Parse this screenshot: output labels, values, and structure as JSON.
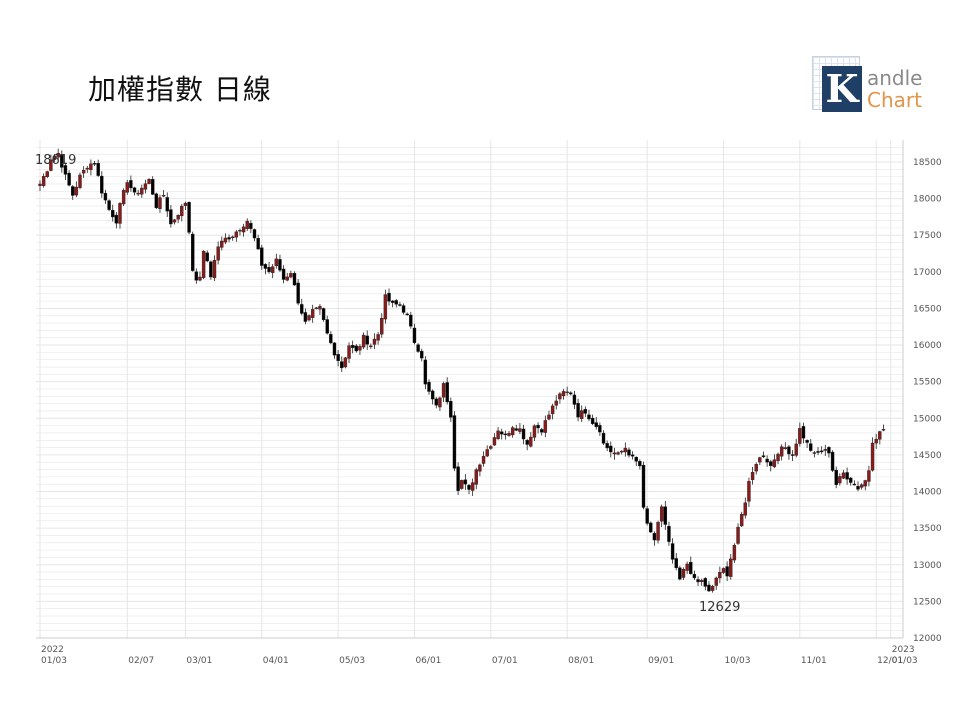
{
  "title": "加權指數 日線",
  "logo": {
    "mark": "K",
    "line1": "andle",
    "line2": "Chart"
  },
  "colors": {
    "up": "#8b1a1a",
    "down": "#000000",
    "grid": "#e6e6e6",
    "axis": "#cccccc"
  },
  "chart_data": {
    "type": "candlestick",
    "title": "加權指數 日線",
    "ylim": [
      12000,
      18800
    ],
    "y_ticks": [
      "18500",
      "18000",
      "17500",
      "17000",
      "16500",
      "16000",
      "15500",
      "15000",
      "14500",
      "14000",
      "13500",
      "13000",
      "12500",
      "12000"
    ],
    "x_ticks": [
      {
        "top": "2022",
        "bottom": "01/03"
      },
      {
        "top": "",
        "bottom": "02/07"
      },
      {
        "top": "",
        "bottom": "03/01"
      },
      {
        "top": "",
        "bottom": "04/01"
      },
      {
        "top": "",
        "bottom": "05/03"
      },
      {
        "top": "",
        "bottom": "06/01"
      },
      {
        "top": "",
        "bottom": "07/01"
      },
      {
        "top": "",
        "bottom": "08/01"
      },
      {
        "top": "",
        "bottom": "09/01"
      },
      {
        "top": "",
        "bottom": "10/03"
      },
      {
        "top": "",
        "bottom": "11/01"
      },
      {
        "top": "",
        "bottom": "12/01"
      },
      {
        "top": "2023",
        "bottom": "01/03"
      }
    ],
    "annotations": [
      {
        "text": "18619",
        "value": 18619
      },
      {
        "text": "12629",
        "value": 12629
      }
    ],
    "close_path": [
      [
        0,
        18200
      ],
      [
        2,
        18400
      ],
      [
        3,
        18550
      ],
      [
        5,
        18619
      ],
      [
        7,
        18300
      ],
      [
        9,
        18050
      ],
      [
        11,
        18300
      ],
      [
        13,
        18450
      ],
      [
        15,
        18500
      ],
      [
        17,
        18100
      ],
      [
        19,
        17850
      ],
      [
        21,
        17700
      ],
      [
        22,
        17900
      ],
      [
        24,
        18250
      ],
      [
        26,
        18050
      ],
      [
        28,
        18150
      ],
      [
        30,
        18250
      ],
      [
        32,
        17900
      ],
      [
        34,
        18050
      ],
      [
        36,
        17650
      ],
      [
        38,
        17800
      ],
      [
        40,
        17950
      ],
      [
        41,
        17550
      ],
      [
        42,
        17050
      ],
      [
        43,
        16850
      ],
      [
        44,
        16950
      ],
      [
        45,
        17250
      ],
      [
        46,
        17150
      ],
      [
        47,
        16950
      ],
      [
        49,
        17350
      ],
      [
        51,
        17450
      ],
      [
        53,
        17500
      ],
      [
        55,
        17600
      ],
      [
        57,
        17700
      ],
      [
        59,
        17450
      ],
      [
        61,
        17100
      ],
      [
        63,
        17000
      ],
      [
        65,
        17150
      ],
      [
        67,
        16900
      ],
      [
        69,
        17000
      ],
      [
        71,
        16600
      ],
      [
        73,
        16300
      ],
      [
        75,
        16450
      ],
      [
        77,
        16500
      ],
      [
        79,
        16150
      ],
      [
        81,
        15900
      ],
      [
        83,
        15700
      ],
      [
        85,
        16000
      ],
      [
        87,
        15900
      ],
      [
        89,
        16100
      ],
      [
        91,
        16000
      ],
      [
        93,
        16150
      ],
      [
        95,
        16650
      ],
      [
        97,
        16550
      ],
      [
        99,
        16550
      ],
      [
        101,
        16400
      ],
      [
        103,
        16050
      ],
      [
        105,
        15850
      ],
      [
        106,
        15450
      ],
      [
        107,
        15350
      ],
      [
        109,
        15150
      ],
      [
        111,
        15450
      ],
      [
        113,
        15050
      ],
      [
        114,
        14350
      ],
      [
        115,
        14050
      ],
      [
        116,
        14150
      ],
      [
        118,
        14000
      ],
      [
        120,
        14300
      ],
      [
        122,
        14500
      ],
      [
        124,
        14650
      ],
      [
        126,
        14850
      ],
      [
        128,
        14750
      ],
      [
        130,
        14900
      ],
      [
        132,
        14850
      ],
      [
        134,
        14650
      ],
      [
        136,
        14900
      ],
      [
        138,
        14850
      ],
      [
        140,
        15050
      ],
      [
        142,
        15250
      ],
      [
        144,
        15350
      ],
      [
        146,
        15350
      ],
      [
        148,
        15050
      ],
      [
        150,
        15100
      ],
      [
        152,
        14950
      ],
      [
        154,
        14850
      ],
      [
        155,
        14650
      ],
      [
        157,
        14550
      ],
      [
        159,
        14500
      ],
      [
        161,
        14600
      ],
      [
        163,
        14450
      ],
      [
        165,
        14350
      ],
      [
        166,
        13750
      ],
      [
        167,
        13550
      ],
      [
        168,
        13450
      ],
      [
        169,
        13300
      ],
      [
        171,
        13800
      ],
      [
        173,
        13300
      ],
      [
        174,
        13050
      ],
      [
        176,
        12800
      ],
      [
        178,
        13000
      ],
      [
        179,
        12850
      ],
      [
        181,
        12800
      ],
      [
        183,
        12700
      ],
      [
        184,
        12629
      ],
      [
        186,
        12800
      ],
      [
        188,
        12950
      ],
      [
        189,
        12850
      ],
      [
        190,
        13050
      ],
      [
        191,
        13250
      ],
      [
        192,
        13550
      ],
      [
        194,
        13850
      ],
      [
        195,
        14100
      ],
      [
        197,
        14400
      ],
      [
        199,
        14500
      ],
      [
        201,
        14350
      ],
      [
        203,
        14550
      ],
      [
        205,
        14600
      ],
      [
        207,
        14500
      ],
      [
        209,
        14850
      ],
      [
        211,
        14650
      ],
      [
        213,
        14500
      ],
      [
        215,
        14550
      ],
      [
        217,
        14550
      ],
      [
        218,
        14300
      ],
      [
        219,
        14100
      ],
      [
        221,
        14250
      ],
      [
        223,
        14150
      ],
      [
        225,
        14050
      ],
      [
        227,
        14150
      ],
      [
        228,
        14300
      ],
      [
        229,
        14700
      ],
      [
        230,
        14750
      ],
      [
        232,
        14850
      ]
    ]
  }
}
